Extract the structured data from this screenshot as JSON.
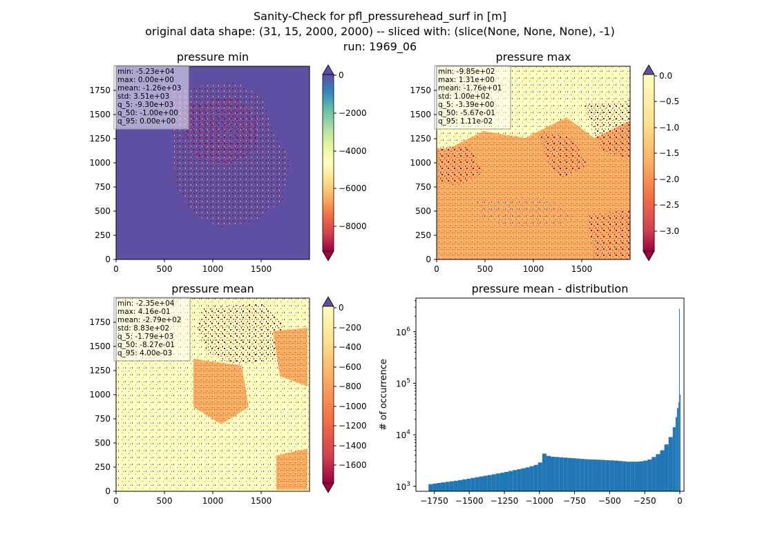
{
  "figure": {
    "title_lines": [
      "Sanity-Check for pfl_pressurehead_surf in [m]",
      "original data shape: (31, 15, 2000, 2000) -- sliced with: (slice(None, None, None), -1)",
      "run: 1969_06"
    ]
  },
  "panels": {
    "min": {
      "title": "pressure min",
      "stats": [
        "min: -5.23e+04",
        "max: 0.00e+00",
        "mean: -1.26e+03",
        "std: 3.51e+03",
        "q_5: -9.30e+03",
        "q_50: -1.00e+00",
        "q_95: 0.00e+00"
      ],
      "colorbar": {
        "ticks": [
          "0",
          "−2000",
          "−4000",
          "−6000",
          "−8000"
        ]
      }
    },
    "max": {
      "title": "pressure max",
      "stats": [
        "min: -9.85e+02",
        "max: 1.31e+00",
        "mean: -1.76e+01",
        "std: 1.00e+02",
        "q_5: -3.39e+00",
        "q_50: -5.67e-01",
        "q_95: 1.11e-02"
      ],
      "colorbar": {
        "ticks": [
          "0.0",
          "−0.5",
          "−1.0",
          "−1.5",
          "−2.0",
          "−2.5",
          "−3.0"
        ]
      }
    },
    "mean": {
      "title": "pressure mean",
      "stats": [
        "min: -2.35e+04",
        "max: 4.16e-01",
        "mean: -2.79e+02",
        "std: 8.83e+02",
        "q_5: -1.79e+03",
        "q_50: -8.27e-01",
        "q_95: 4.00e-03"
      ],
      "colorbar": {
        "ticks": [
          "0",
          "−200",
          "−400",
          "−600",
          "−800",
          "−1000",
          "−1200",
          "−1400",
          "−1600"
        ]
      }
    },
    "hist": {
      "title": "pressure mean - distribution",
      "ylabel": "# of occurrence",
      "xticks": [
        "−1750",
        "−1500",
        "−1250",
        "−1000",
        "−750",
        "−500",
        "−250",
        "0"
      ]
    }
  },
  "map_axes": {
    "xticks": [
      "0",
      "500",
      "1000",
      "1500"
    ],
    "yticks": [
      "0",
      "250",
      "500",
      "750",
      "1000",
      "1250",
      "1500",
      "1750"
    ]
  },
  "colors": {
    "colormap": "Spectral",
    "hist_bar": "#1f77b4",
    "over": "#5e4fa2",
    "under": "#9e0142"
  },
  "chart_data": [
    {
      "type": "heatmap",
      "title": "pressure min",
      "xlim": [
        0,
        2000
      ],
      "ylim": [
        0,
        2000
      ],
      "colorbar_range": [
        -9300,
        0
      ],
      "colormap": "Spectral"
    },
    {
      "type": "heatmap",
      "title": "pressure max",
      "xlim": [
        0,
        2000
      ],
      "ylim": [
        0,
        2000
      ],
      "colorbar_range": [
        -3.39,
        0.011
      ],
      "colormap": "Spectral"
    },
    {
      "type": "heatmap",
      "title": "pressure mean",
      "xlim": [
        0,
        2000
      ],
      "ylim": [
        0,
        2000
      ],
      "colorbar_range": [
        -1790,
        0.004
      ],
      "colormap": "Spectral"
    },
    {
      "type": "bar",
      "title": "pressure mean - distribution",
      "xlabel": "",
      "ylabel": "# of occurrence",
      "yscale": "log",
      "xlim": [
        -1880,
        30
      ],
      "ylim": [
        800,
        4500000
      ],
      "yticks": [
        1000,
        10000,
        100000,
        1000000
      ],
      "x": [
        -1790,
        -1760,
        -1730,
        -1700,
        -1670,
        -1640,
        -1610,
        -1580,
        -1550,
        -1520,
        -1490,
        -1460,
        -1430,
        -1400,
        -1370,
        -1340,
        -1310,
        -1280,
        -1250,
        -1220,
        -1190,
        -1160,
        -1130,
        -1100,
        -1070,
        -1040,
        -1010,
        -980,
        -950,
        -920,
        -890,
        -860,
        -830,
        -800,
        -770,
        -740,
        -710,
        -680,
        -650,
        -620,
        -590,
        -560,
        -530,
        -500,
        -470,
        -440,
        -410,
        -380,
        -350,
        -320,
        -290,
        -260,
        -230,
        -200,
        -170,
        -140,
        -110,
        -80,
        -50,
        -30,
        -20,
        -10,
        -5,
        0
      ],
      "values": [
        1100,
        1130,
        1160,
        1190,
        1220,
        1250,
        1280,
        1320,
        1360,
        1400,
        1450,
        1500,
        1550,
        1600,
        1650,
        1710,
        1770,
        1830,
        1900,
        1980,
        2060,
        2140,
        2230,
        2330,
        2450,
        2600,
        2900,
        4300,
        3900,
        3750,
        3700,
        3650,
        3600,
        3550,
        3500,
        3450,
        3400,
        3350,
        3320,
        3300,
        3280,
        3250,
        3200,
        3180,
        3150,
        3100,
        3050,
        3000,
        3000,
        3000,
        3050,
        3150,
        3300,
        3700,
        4200,
        5000,
        6500,
        9000,
        14000,
        22000,
        33000,
        43000,
        2800000,
        60000
      ]
    }
  ]
}
